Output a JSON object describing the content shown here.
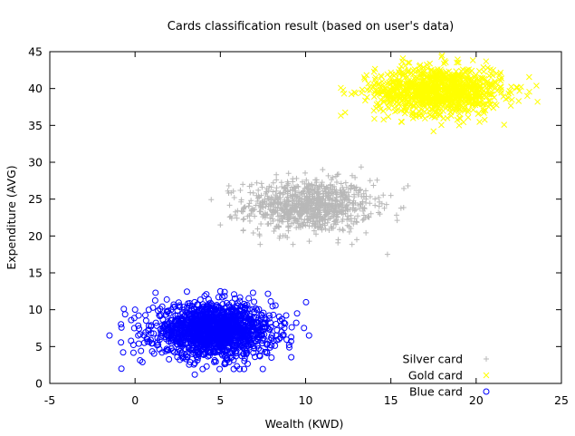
{
  "chart_data": {
    "type": "scatter",
    "title": "Cards classification result (based on user's data)",
    "xlabel": "Wealth (KWD)",
    "ylabel": "Expenditure (AVG)",
    "xlim": [
      -5,
      25
    ],
    "ylim": [
      0,
      45
    ],
    "xticks": [
      "-5",
      "0",
      "5",
      "10",
      "15",
      "20",
      "25"
    ],
    "yticks": [
      "0",
      "5",
      "10",
      "15",
      "20",
      "25",
      "30",
      "35",
      "40",
      "45"
    ],
    "grid": false,
    "legend_position": "bottom-right",
    "series": [
      {
        "name": "Silver card",
        "marker": "plus",
        "color": "#b8b8b8",
        "center": [
          10.2,
          24.1
        ],
        "spread": [
          1.85,
          1.75
        ],
        "count": 900,
        "sample_points": [
          [
            5.0,
            21.5
          ],
          [
            5.5,
            26.8
          ],
          [
            8.5,
            20.0
          ],
          [
            9.0,
            28.5
          ],
          [
            11.0,
            29.0
          ],
          [
            13.0,
            19.5
          ],
          [
            15.0,
            25.5
          ],
          [
            16.0,
            26.8
          ],
          [
            14.8,
            17.5
          ],
          [
            10.0,
            24.0
          ]
        ]
      },
      {
        "name": "Gold card",
        "marker": "cross",
        "color": "#ffff00",
        "center": [
          17.8,
          39.7
        ],
        "spread": [
          1.85,
          1.6
        ],
        "count": 1100,
        "sample_points": [
          [
            12.2,
            39.8
          ],
          [
            14.0,
            37.0
          ],
          [
            16.0,
            43.5
          ],
          [
            18.0,
            44.5
          ],
          [
            19.0,
            35.0
          ],
          [
            21.0,
            42.5
          ],
          [
            23.0,
            39.0
          ],
          [
            23.6,
            38.2
          ],
          [
            17.5,
            34.2
          ],
          [
            18.0,
            40.0
          ]
        ]
      },
      {
        "name": "Blue card",
        "marker": "circle",
        "color": "#0000ff",
        "center": [
          4.6,
          7.2
        ],
        "spread": [
          1.75,
          1.75
        ],
        "count": 1500,
        "sample_points": [
          [
            -1.5,
            6.5
          ],
          [
            -0.8,
            2.0
          ],
          [
            0.0,
            10.0
          ],
          [
            1.2,
            12.3
          ],
          [
            3.5,
            1.2
          ],
          [
            5.0,
            12.5
          ],
          [
            8.0,
            3.5
          ],
          [
            9.5,
            9.5
          ],
          [
            10.2,
            6.5
          ],
          [
            4.5,
            7.0
          ]
        ]
      }
    ]
  }
}
